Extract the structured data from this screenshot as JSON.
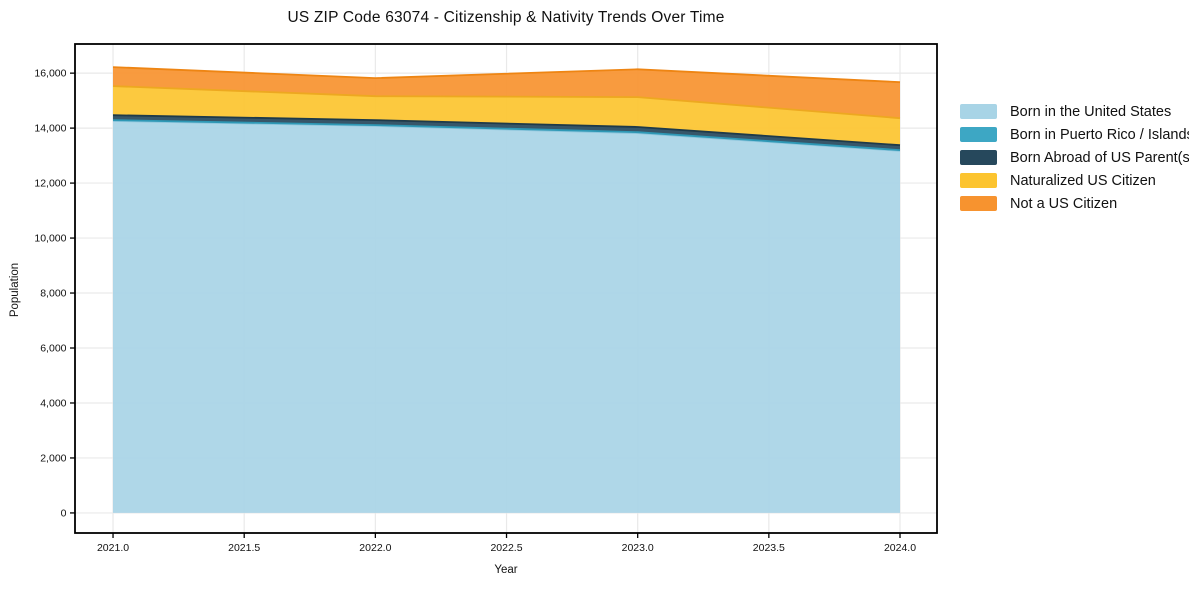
{
  "title": "US ZIP Code 63074 - Citizenship & Nativity Trends Over Time",
  "axes": {
    "xlabel": "Year",
    "ylabel": "Population",
    "xtick_labels": [
      "2021.0",
      "2021.5",
      "2022.0",
      "2022.5",
      "2023.0",
      "2023.5",
      "2024.0"
    ],
    "ytick_labels": [
      "0",
      "2,000",
      "4,000",
      "6,000",
      "8,000",
      "10,000",
      "12,000",
      "14,000",
      "16,000"
    ]
  },
  "chart_data": {
    "type": "area",
    "stacked": true,
    "title": "US ZIP Code 63074 - Citizenship & Nativity Trends Over Time",
    "xlabel": "Year",
    "ylabel": "Population",
    "x": [
      2021,
      2022,
      2023,
      2024
    ],
    "xticks": [
      2021.0,
      2021.5,
      2022.0,
      2022.5,
      2023.0,
      2023.5,
      2024.0
    ],
    "yticks": [
      0,
      2000,
      4000,
      6000,
      8000,
      10000,
      12000,
      14000,
      16000
    ],
    "xlim": [
      2020.855,
      2024.141
    ],
    "ylim": [
      -730,
      17060
    ],
    "grid": true,
    "legend_position": "outside-right",
    "series": [
      {
        "name": "Born in the United States",
        "color": "#A8D4E6",
        "edge": "#8CC5DC",
        "values": [
          14260,
          14080,
          13820,
          13170
        ]
      },
      {
        "name": "Born in Puerto Rico / Islands",
        "color": "#3DA7C4",
        "edge": "#2E98B5",
        "values": [
          30,
          30,
          30,
          30
        ]
      },
      {
        "name": "Born Abroad of US Parent(s)",
        "color": "#26485C",
        "edge": "#1E3A4A",
        "values": [
          180,
          180,
          190,
          180
        ]
      },
      {
        "name": "Naturalized US Citizen",
        "color": "#FCC42F",
        "edge": "#EDA820",
        "values": [
          1060,
          870,
          1090,
          980
        ]
      },
      {
        "name": "Not a US Citizen",
        "color": "#F7932F",
        "edge": "#EE8513",
        "values": [
          690,
          660,
          1010,
          1310
        ]
      }
    ],
    "totals": [
      16220,
      15820,
      16140,
      15670
    ]
  },
  "colors": {
    "background": "#ffffff",
    "frame": "#000000",
    "grid": "#e9e9e9",
    "text": "#111111"
  }
}
